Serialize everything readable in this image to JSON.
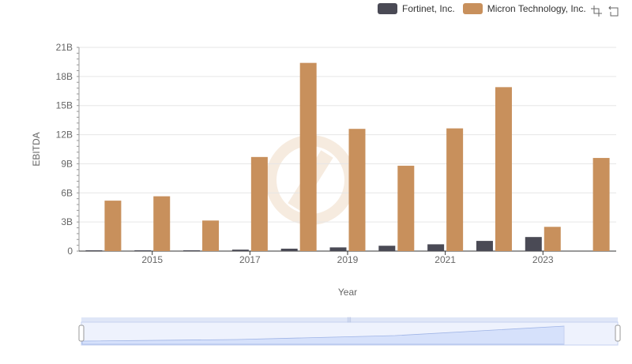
{
  "chart_data": {
    "type": "bar",
    "title": "",
    "xlabel": "Year",
    "ylabel": "EBITDA",
    "ylim": [
      0,
      21000000000
    ],
    "yticks": [
      "0",
      "3B",
      "6B",
      "9B",
      "12B",
      "15B",
      "18B",
      "21B"
    ],
    "ytick_values": [
      0,
      3000000000,
      6000000000,
      9000000000,
      12000000000,
      15000000000,
      18000000000,
      21000000000
    ],
    "categories": [
      "2014",
      "2015",
      "2016",
      "2017",
      "2018",
      "2019",
      "2020",
      "2021",
      "2022",
      "2023",
      "2024"
    ],
    "xtick_labels": [
      "2015",
      "2017",
      "2019",
      "2021",
      "2023"
    ],
    "series": [
      {
        "name": "Fortinet, Inc.",
        "color": "#4a4a55",
        "values": [
          30000000,
          50000000,
          80000000,
          150000000,
          250000000,
          380000000,
          550000000,
          700000000,
          1050000000,
          1450000000,
          null
        ]
      },
      {
        "name": "Micron Technology, Inc.",
        "color": "#c8905c",
        "values": [
          5200000000,
          5650000000,
          3150000000,
          9700000000,
          19400000000,
          12600000000,
          8800000000,
          12650000000,
          16900000000,
          2500000000,
          9600000000
        ]
      }
    ],
    "legend_position": "top-right"
  },
  "toolbox": {
    "zoom_icon": "zoom-icon",
    "restore_icon": "restore-icon"
  },
  "datazoom": {
    "range_start": 0,
    "range_end": 100
  }
}
